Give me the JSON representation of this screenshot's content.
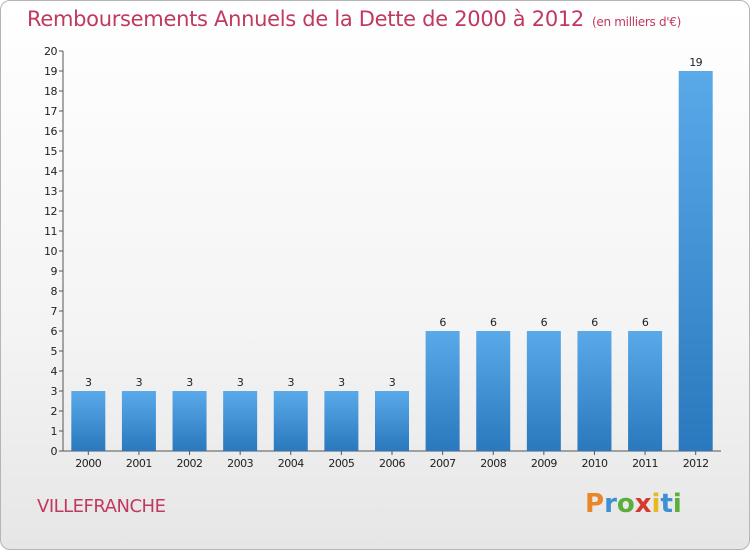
{
  "title": "Remboursements Annuels de la Dette de 2000 à 2012",
  "subtitle": "(en milliers d'€)",
  "commune": "VILLEFRANCHE",
  "logo": {
    "letters": [
      "P",
      "r",
      "o",
      "x",
      "i",
      "t",
      "i"
    ],
    "colors": [
      "#e8872a",
      "#3f8fd4",
      "#5aae3a",
      "#d63a2f",
      "#e8b820",
      "#3f8fd4",
      "#5aae3a"
    ]
  },
  "colors": {
    "title": "#c0395f",
    "bar_light": "#5aaaea",
    "bar_dark": "#2a78bd",
    "axis": "#555555"
  },
  "chart_data": {
    "type": "bar",
    "categories": [
      "2000",
      "2001",
      "2002",
      "2003",
      "2004",
      "2005",
      "2006",
      "2007",
      "2008",
      "2009",
      "2010",
      "2011",
      "2012"
    ],
    "values": [
      3,
      3,
      3,
      3,
      3,
      3,
      3,
      6,
      6,
      6,
      6,
      6,
      19
    ],
    "ylim": [
      0,
      20
    ],
    "yticks": [
      0,
      1,
      2,
      3,
      4,
      5,
      6,
      7,
      8,
      9,
      10,
      11,
      12,
      13,
      14,
      15,
      16,
      17,
      18,
      19,
      20
    ],
    "xlabel": "",
    "ylabel": "",
    "grid": false,
    "data_labels": true
  }
}
